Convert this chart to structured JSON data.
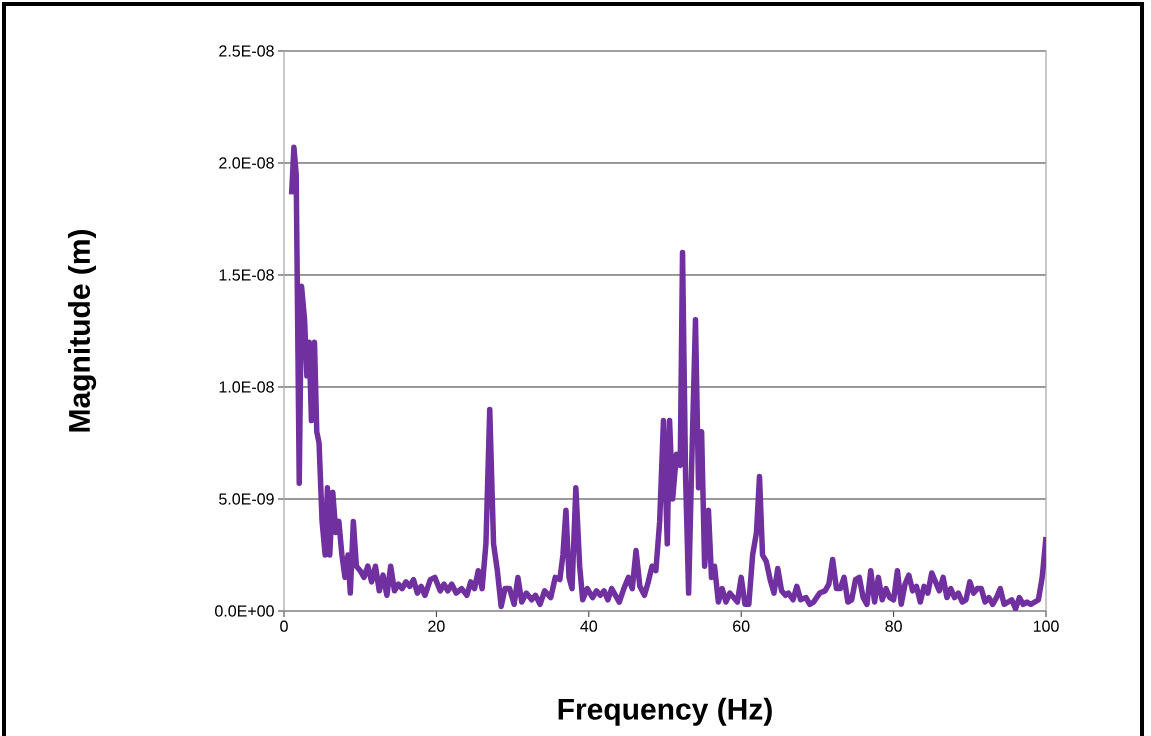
{
  "chart_data": {
    "type": "line",
    "xlabel": "Frequency (Hz)",
    "ylabel": "Magnitude (m)",
    "series": [
      {
        "color": "#7030a0",
        "x": [
          1.0,
          1.3,
          1.6,
          2.0,
          2.3,
          2.7,
          3.0,
          3.3,
          3.6,
          4.0,
          4.3,
          4.6,
          5.0,
          5.4,
          5.7,
          6.0,
          6.4,
          6.8,
          7.2,
          7.6,
          8.0,
          8.4,
          8.7,
          9.1,
          9.5,
          10,
          10.5,
          11,
          11.5,
          12,
          12.5,
          13,
          13.5,
          14,
          14.5,
          15,
          15.5,
          16,
          16.5,
          17,
          17.5,
          18,
          18.5,
          19.2,
          19.8,
          20.5,
          21,
          21.5,
          22,
          22.6,
          23.3,
          24,
          24.5,
          25,
          25.5,
          26,
          26.5,
          27,
          27.5,
          28,
          28.5,
          29,
          29.6,
          30.2,
          30.7,
          31.2,
          31.8,
          32.5,
          33,
          33.6,
          34.2,
          35,
          35.6,
          36.2,
          36.6,
          37,
          37.4,
          37.8,
          38.3,
          38.8,
          39.2,
          39.8,
          40.5,
          41,
          41.5,
          42,
          42.5,
          43,
          43.5,
          44,
          44.6,
          45.2,
          45.7,
          46.2,
          46.7,
          47.3,
          47.8,
          48.3,
          48.8,
          49.3,
          49.8,
          50.3,
          50.6,
          51,
          51.5,
          52,
          52.3,
          52.7,
          53.1,
          53.5,
          54,
          54.4,
          54.8,
          55.2,
          55.7,
          56.1,
          56.5,
          57,
          57.5,
          58,
          58.5,
          59,
          59.5,
          60,
          60.5,
          61,
          61.5,
          62,
          62.4,
          62.8,
          63.3,
          63.8,
          64.3,
          64.8,
          65.3,
          65.8,
          66.2,
          66.8,
          67.3,
          67.8,
          68.5,
          69,
          69.5,
          70.3,
          71,
          71.5,
          72,
          72.5,
          73,
          73.5,
          74,
          74.5,
          75,
          75.5,
          76,
          76.5,
          77,
          77.5,
          78,
          78.5,
          79,
          79.5,
          80,
          80.5,
          81,
          81.5,
          82,
          82.5,
          83,
          83.5,
          84,
          84.5,
          85,
          85.5,
          86,
          86.5,
          87,
          87.5,
          88,
          88.5,
          89,
          89.5,
          90,
          90.5,
          91,
          91.5,
          92,
          92.5,
          93,
          93.5,
          94,
          94.5,
          95,
          95.5,
          96,
          96.5,
          97,
          97.5,
          98,
          98.5,
          99,
          99.5,
          100
        ],
        "values": [
          1.86e-08,
          2.07e-08,
          1.95e-08,
          5.7e-09,
          1.45e-08,
          1.3e-08,
          1.05e-08,
          1.2e-08,
          8.5e-09,
          1.2e-08,
          8e-09,
          7.5e-09,
          4e-09,
          2.5e-09,
          5.5e-09,
          2.5e-09,
          5.3e-09,
          3.5e-09,
          4e-09,
          2.5e-09,
          1.5e-09,
          2.5e-09,
          8e-10,
          4e-09,
          2e-09,
          1.8e-09,
          1.5e-09,
          2e-09,
          1.3e-09,
          2e-09,
          9e-10,
          1.6e-09,
          7e-10,
          2e-09,
          9e-10,
          1.2e-09,
          1e-09,
          1.3e-09,
          1.1e-09,
          1.4e-09,
          8e-10,
          1.1e-09,
          7e-10,
          1.4e-09,
          1.5e-09,
          9e-10,
          1.2e-09,
          9e-10,
          1.2e-09,
          8e-10,
          1e-09,
          7e-10,
          1.3e-09,
          1e-09,
          1.8e-09,
          1e-09,
          3e-09,
          9e-09,
          3e-09,
          1.8e-09,
          2e-10,
          1e-09,
          1e-09,
          3e-10,
          1.5e-09,
          4e-10,
          8e-10,
          5e-10,
          7e-10,
          3e-10,
          9e-10,
          6e-10,
          1.5e-09,
          1.4e-09,
          2.5e-09,
          4.5e-09,
          1.5e-09,
          1e-09,
          5.5e-09,
          2e-09,
          5e-10,
          1e-09,
          6e-10,
          9e-10,
          7e-10,
          9e-10,
          5e-10,
          1e-09,
          7e-10,
          4e-10,
          1e-09,
          1.5e-09,
          1e-09,
          2.7e-09,
          1.1e-09,
          7e-10,
          1.3e-09,
          2e-09,
          1.8e-09,
          4e-09,
          8.5e-09,
          3e-09,
          8.5e-09,
          5e-09,
          7e-09,
          6.5e-09,
          1.6e-08,
          6e-09,
          8e-10,
          6.5e-09,
          1.3e-08,
          5.5e-09,
          8e-09,
          2e-09,
          4.5e-09,
          1.5e-09,
          2e-09,
          4e-10,
          1e-09,
          4e-10,
          8e-10,
          6e-10,
          4e-10,
          1.5e-09,
          3e-10,
          3e-10,
          2.5e-09,
          3.5e-09,
          6e-09,
          2.5e-09,
          2.2e-09,
          1.4e-09,
          8e-10,
          1.9e-09,
          9e-10,
          7e-10,
          8e-10,
          5e-10,
          1.1e-09,
          5e-10,
          6e-10,
          3e-10,
          4e-10,
          8e-10,
          9e-10,
          1.2e-09,
          2.3e-09,
          1e-09,
          1e-09,
          1.5e-09,
          4e-10,
          5e-10,
          1.4e-09,
          1.5e-09,
          6e-10,
          3e-10,
          1.8e-09,
          4e-10,
          1.5e-09,
          5e-10,
          1e-09,
          6e-10,
          5e-10,
          1.8e-09,
          3e-10,
          1.2e-09,
          1.6e-09,
          9e-10,
          1.1e-09,
          4e-10,
          1.1e-09,
          8e-10,
          1.7e-09,
          1.3e-09,
          9e-10,
          1.5e-09,
          6e-10,
          1e-09,
          6e-10,
          8e-10,
          4e-10,
          5e-10,
          1.3e-09,
          8e-10,
          1e-09,
          1e-09,
          4e-10,
          6e-10,
          3e-10,
          6e-10,
          1e-09,
          3e-10,
          4e-10,
          5e-10,
          1e-10,
          6e-10,
          3e-10,
          4e-10,
          3e-10,
          4e-10,
          5e-10,
          1.5e-09,
          3.3e-09
        ]
      }
    ],
    "xlim": [
      0,
      100
    ],
    "xticks": [
      0,
      20,
      40,
      60,
      80,
      100
    ],
    "ylim": [
      0,
      2.5e-08
    ],
    "yticks": [
      {
        "value": 0,
        "label": "0.0E+00"
      },
      {
        "value": 5e-09,
        "label": "5.0E-09"
      },
      {
        "value": 1e-08,
        "label": "1.0E-08"
      },
      {
        "value": 1.5e-08,
        "label": "1.5E-08"
      },
      {
        "value": 2e-08,
        "label": "2.0E-08"
      },
      {
        "value": 2.5e-08,
        "label": "2.5E-08"
      }
    ],
    "grid": "y",
    "marker": "none",
    "line_style": "solid"
  }
}
